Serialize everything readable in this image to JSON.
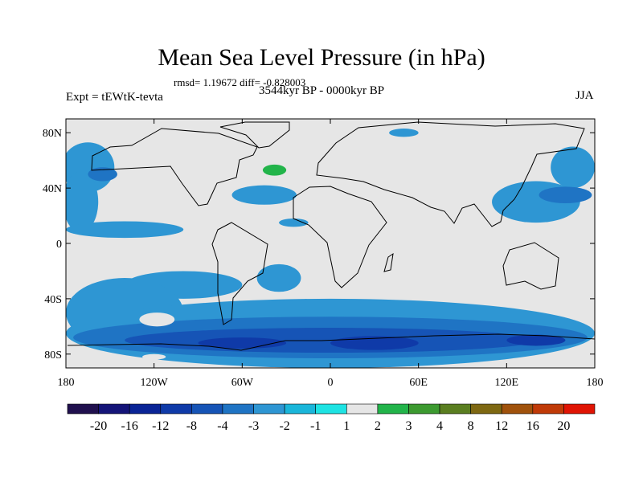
{
  "title": "Mean Sea Level Pressure (in hPa)",
  "stats": "rmsd= 1.19672 diff= -0.828003",
  "experiment": "Expt = tEWtK-tevta",
  "period": "3544kyr BP - 0000kyr BP",
  "season": "JJA",
  "chart_data": {
    "type": "heatmap",
    "title": "Mean Sea Level Pressure (in hPa)",
    "projection": "cylindrical equidistant",
    "x_range": [
      -180,
      180
    ],
    "y_range": [
      -90,
      90
    ],
    "x_ticks": [
      {
        "value": -180,
        "label": "180"
      },
      {
        "value": -120,
        "label": "120W"
      },
      {
        "value": -60,
        "label": "60W"
      },
      {
        "value": 0,
        "label": "0"
      },
      {
        "value": 60,
        "label": "60E"
      },
      {
        "value": 120,
        "label": "120E"
      },
      {
        "value": 180,
        "label": "180"
      }
    ],
    "y_ticks": [
      {
        "value": 80,
        "label": "80N"
      },
      {
        "value": 40,
        "label": "40N"
      },
      {
        "value": 0,
        "label": "0"
      },
      {
        "value": -40,
        "label": "40S"
      },
      {
        "value": -80,
        "label": "80S"
      }
    ],
    "colorbar": {
      "levels": [
        "-20",
        "-16",
        "-12",
        "-8",
        "-4",
        "-3",
        "-2",
        "-1",
        "1",
        "2",
        "3",
        "4",
        "8",
        "12",
        "16",
        "20"
      ],
      "colors": [
        "#20104e",
        "#141478",
        "#0a2496",
        "#0f3aa8",
        "#1654b6",
        "#1f74c4",
        "#2e96d3",
        "#1ab6da",
        "#1ee3e3",
        "#e6e6e6",
        "#22b44a",
        "#3c9a30",
        "#5a7e20",
        "#7e6812",
        "#a0520c",
        "#c03a08",
        "#e01404"
      ]
    },
    "background_color": "#e6e6e6",
    "regions": [
      {
        "level": "-2",
        "lon": -165,
        "lat": 55,
        "rx": 18,
        "ry": 18
      },
      {
        "level": "-2",
        "lon": -170,
        "lat": 30,
        "rx": 12,
        "ry": 22
      },
      {
        "level": "-2",
        "lon": -140,
        "lat": 10,
        "rx": 40,
        "ry": 6
      },
      {
        "level": "-2",
        "lon": -45,
        "lat": 35,
        "rx": 22,
        "ry": 7
      },
      {
        "level": "-2",
        "lon": -25,
        "lat": 15,
        "rx": 10,
        "ry": 3
      },
      {
        "level": "-2",
        "lon": 140,
        "lat": 30,
        "rx": 30,
        "ry": 15
      },
      {
        "level": "-2",
        "lon": 165,
        "lat": 55,
        "rx": 15,
        "ry": 15
      },
      {
        "level": "-2",
        "lon": 50,
        "lat": 80,
        "rx": 10,
        "ry": 3
      },
      {
        "level": "-2",
        "lon": -35,
        "lat": -25,
        "rx": 15,
        "ry": 10
      },
      {
        "level": "-2",
        "lon": -100,
        "lat": -30,
        "rx": 40,
        "ry": 10
      },
      {
        "level": "-2",
        "lon": -140,
        "lat": -50,
        "rx": 40,
        "ry": 25
      },
      {
        "level": "-2",
        "lon": 0,
        "lat": -65,
        "rx": 180,
        "ry": 25
      },
      {
        "level": "-3",
        "lon": 160,
        "lat": 35,
        "rx": 18,
        "ry": 6
      },
      {
        "level": "-3",
        "lon": -155,
        "lat": 50,
        "rx": 10,
        "ry": 5
      },
      {
        "level": "-3",
        "lon": 0,
        "lat": -68,
        "rx": 175,
        "ry": 15
      },
      {
        "level": "-4",
        "lon": 0,
        "lat": -70,
        "rx": 140,
        "ry": 9
      },
      {
        "level": "-8",
        "lon": 30,
        "lat": -72,
        "rx": 30,
        "ry": 5
      },
      {
        "level": "-8",
        "lon": 140,
        "lat": -70,
        "rx": 20,
        "ry": 4
      },
      {
        "level": "-8",
        "lon": -60,
        "lat": -72,
        "rx": 30,
        "ry": 4
      },
      {
        "level": "1",
        "lon": -40,
        "lat": 52,
        "rx": 16,
        "ry": 8
      },
      {
        "level": "2",
        "lon": -38,
        "lat": 53,
        "rx": 8,
        "ry": 4
      },
      {
        "level": "1",
        "lon": -118,
        "lat": -55,
        "rx": 12,
        "ry": 5
      },
      {
        "level": "1",
        "lon": 50,
        "lat": 30,
        "rx": 5,
        "ry": 3
      },
      {
        "level": "1",
        "lon": 75,
        "lat": 30,
        "rx": 5,
        "ry": 2
      },
      {
        "level": "1",
        "lon": -120,
        "lat": -82,
        "rx": 8,
        "ry": 2
      },
      {
        "level": "1",
        "lon": -75,
        "lat": 82,
        "rx": 6,
        "ry": 3
      }
    ]
  }
}
